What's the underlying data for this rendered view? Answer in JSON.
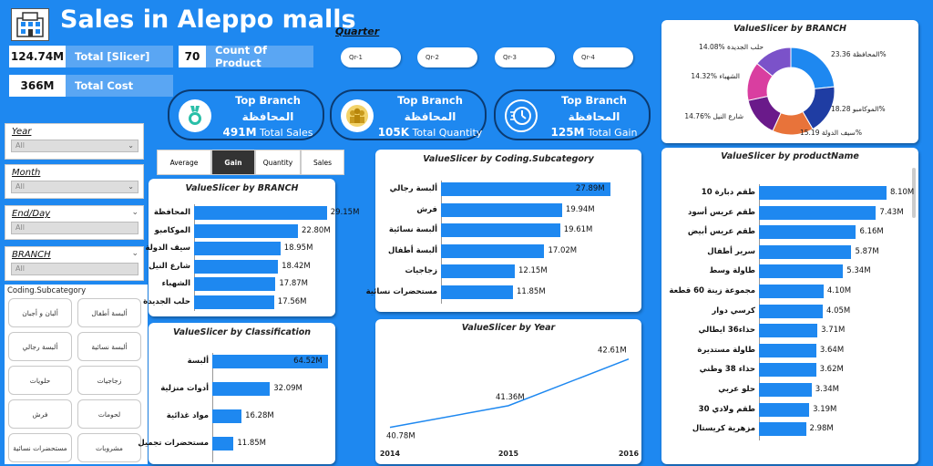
{
  "header": {
    "title": "Sales in Aleppo malls"
  },
  "kpis_small": [
    {
      "value": "124.74M",
      "label": "Total [Slicer]"
    },
    {
      "value": "70",
      "label": "Count Of Product"
    },
    {
      "value": "366M",
      "label": "Total Cost"
    }
  ],
  "quarter": {
    "label": "Quarter",
    "options": [
      "Qr-1",
      "Qr-2",
      "Qr-3",
      "Qr-4"
    ]
  },
  "top_branch": [
    {
      "title": "Top Branch",
      "branch": "المحافظة",
      "value": "491M",
      "metric": "Total Sales",
      "icon": "medal-icon"
    },
    {
      "title": "Top Branch",
      "branch": "المحافظة",
      "value": "105K",
      "metric": "Total Quantity",
      "icon": "people-group-icon"
    },
    {
      "title": "Top Branch",
      "branch": "المحافظة",
      "value": "125M",
      "metric": "Total Gain",
      "icon": "speed-clock-icon"
    }
  ],
  "slicers": [
    {
      "label": "Year",
      "value": "All"
    },
    {
      "label": "Month",
      "value": "All"
    },
    {
      "label": "End/Day",
      "value": "All"
    },
    {
      "label": "BRANCH",
      "value": "All"
    }
  ],
  "subcategory": {
    "label": "Coding.Subcategory",
    "items": [
      "ألبان و أجبان",
      "ألبسة أطفال",
      "ألبسة رجالي",
      "ألبسة نسائية",
      "حلويات",
      "زجاجيات",
      "فرش",
      "لحومات",
      "مستحضرات نسائية",
      "مشروبات"
    ]
  },
  "measure_buttons": {
    "items": [
      "Average",
      "Gain",
      "Quantity",
      "Sales"
    ],
    "selected": "Gain"
  },
  "colors": {
    "accent": "#1e88f0",
    "dark": "#0b3a70",
    "donut": [
      "#1e88f0",
      "#1f3da3",
      "#e8733a",
      "#6a1a8a",
      "#d93ea0",
      "#7b52c9"
    ]
  },
  "chart_data": [
    {
      "id": "branch_bar",
      "type": "bar",
      "title": "ValueSlicer by BRANCH",
      "categories": [
        "المحافظة",
        "الموكامبو",
        "سيف الدولة",
        "شارع النيل",
        "الشهباء",
        "حلب الجديدة"
      ],
      "values": [
        29.15,
        22.8,
        18.95,
        18.42,
        17.87,
        17.56
      ],
      "labels": [
        "29.15M",
        "22.80M",
        "18.95M",
        "18.42M",
        "17.87M",
        "17.56M"
      ]
    },
    {
      "id": "class_bar",
      "type": "bar",
      "title": "ValueSlicer by Classification",
      "categories": [
        "ألبسة",
        "أدوات منزلية",
        "مواد غذائية",
        "مستحضرات تجميل"
      ],
      "values": [
        64.52,
        32.09,
        16.28,
        11.85
      ],
      "labels": [
        "64.52M",
        "32.09M",
        "16.28M",
        "11.85M"
      ]
    },
    {
      "id": "subcat_bar",
      "type": "bar",
      "title": "ValueSlicer by Coding.Subcategory",
      "categories": [
        "ألبسة رجالي",
        "فرش",
        "ألبسة نسائية",
        "ألبسة أطفال",
        "زجاجيات",
        "مستحضرات نسائية"
      ],
      "values": [
        27.89,
        19.94,
        19.61,
        17.02,
        12.15,
        11.85
      ],
      "labels": [
        "27.89M",
        "19.94M",
        "19.61M",
        "17.02M",
        "12.15M",
        "11.85M"
      ]
    },
    {
      "id": "year_line",
      "type": "line",
      "title": "ValueSlicer by Year",
      "x": [
        "2014",
        "2015",
        "2016"
      ],
      "values": [
        40.78,
        41.36,
        42.61
      ],
      "labels": [
        "40.78M",
        "41.36M",
        "42.61M"
      ]
    },
    {
      "id": "donut",
      "type": "pie",
      "title": "ValueSlicer by BRANCH",
      "categories": [
        "المحافظة",
        "الموكامبو",
        "سيف الدولة",
        "شارع النيل",
        "الشهباء",
        "حلب الجديدة"
      ],
      "values": [
        23.36,
        18.28,
        15.19,
        14.76,
        14.32,
        14.08
      ],
      "labels": [
        "23.36%",
        "18.28%",
        "15.19%",
        "14.76%",
        "14.32%",
        "14.08%"
      ]
    },
    {
      "id": "product_bar",
      "type": "bar",
      "title": "ValueSlicer by productName",
      "categories": [
        "طقم دبارة 10",
        "طقم عريس أسود",
        "طقم عريس أبيض",
        "سرير أطفال",
        "طاولة وسط",
        "مجموعة زينة 60 قطعة",
        "كرسي دوار",
        "حذاء36 ايطالي",
        "طاولة مستديرة",
        "حذاء 38 وطني",
        "حلو عربي",
        "طقم ولادي 30",
        "مزهرية كريستال"
      ],
      "values": [
        8.1,
        7.43,
        6.16,
        5.87,
        5.34,
        4.1,
        4.05,
        3.71,
        3.64,
        3.62,
        3.34,
        3.19,
        2.98
      ],
      "labels": [
        "8.10M",
        "7.43M",
        "6.16M",
        "5.87M",
        "5.34M",
        "4.10M",
        "4.05M",
        "3.71M",
        "3.64M",
        "3.62M",
        "3.34M",
        "3.19M",
        "2.98M"
      ]
    }
  ]
}
